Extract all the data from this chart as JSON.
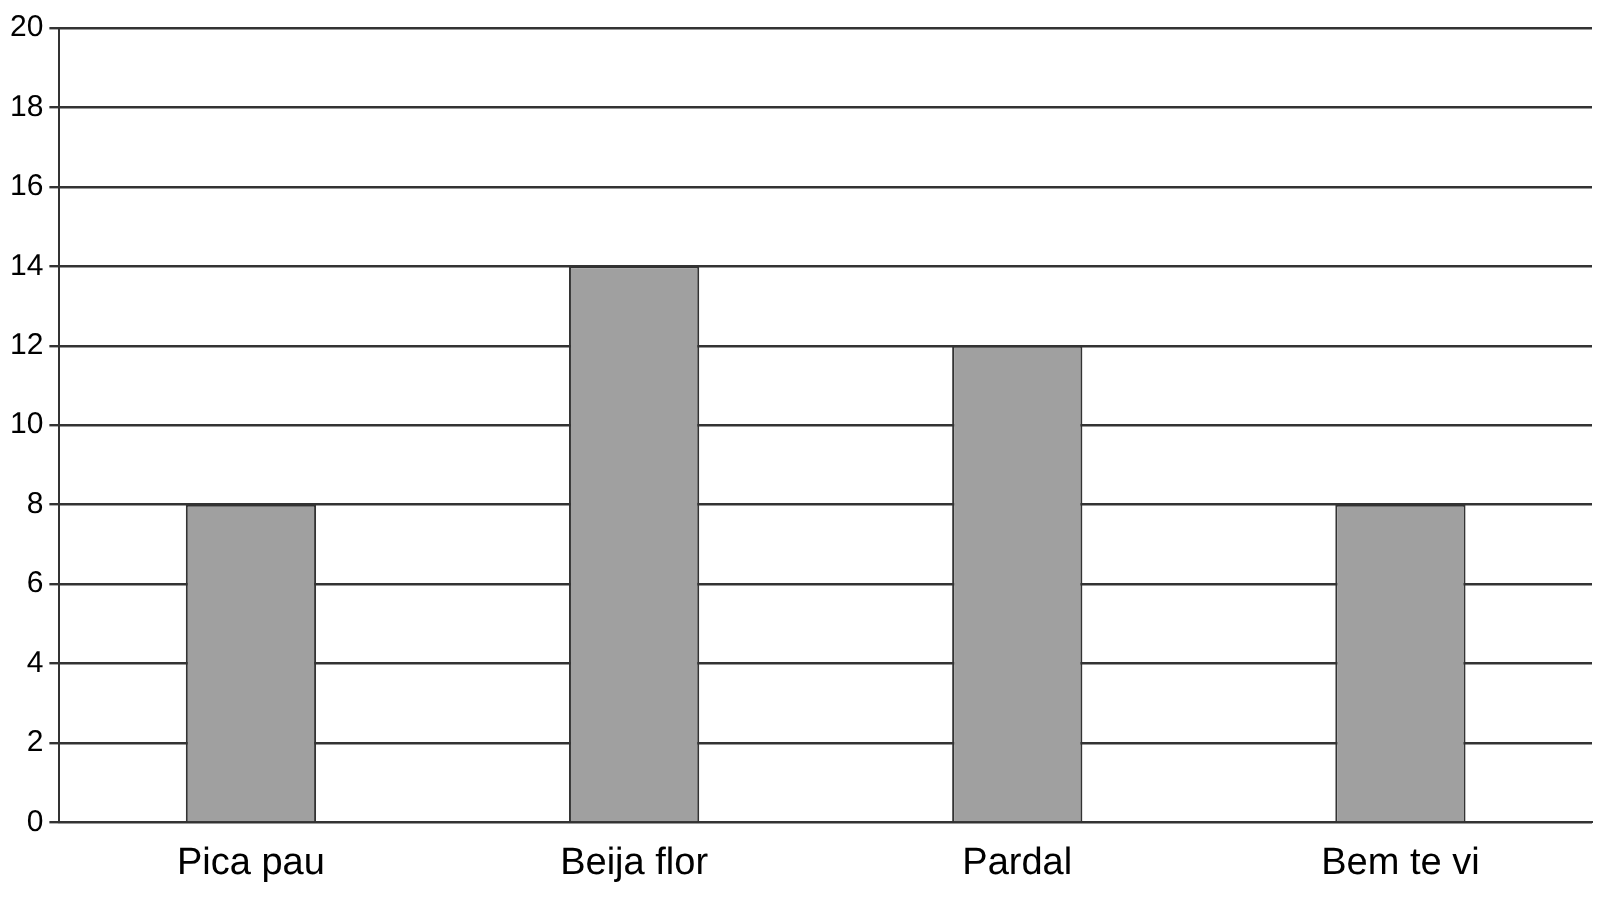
{
  "chart_data": {
    "type": "bar",
    "categories": [
      "Pica pau",
      "Beija flor",
      "Pardal",
      "Bem te vi"
    ],
    "values": [
      8,
      14,
      12,
      8
    ],
    "color": "#a0a0a0",
    "ylim": [
      0,
      20
    ],
    "yticks": [
      0,
      2,
      4,
      6,
      8,
      10,
      12,
      14,
      16,
      18,
      20
    ],
    "grid": "y"
  }
}
